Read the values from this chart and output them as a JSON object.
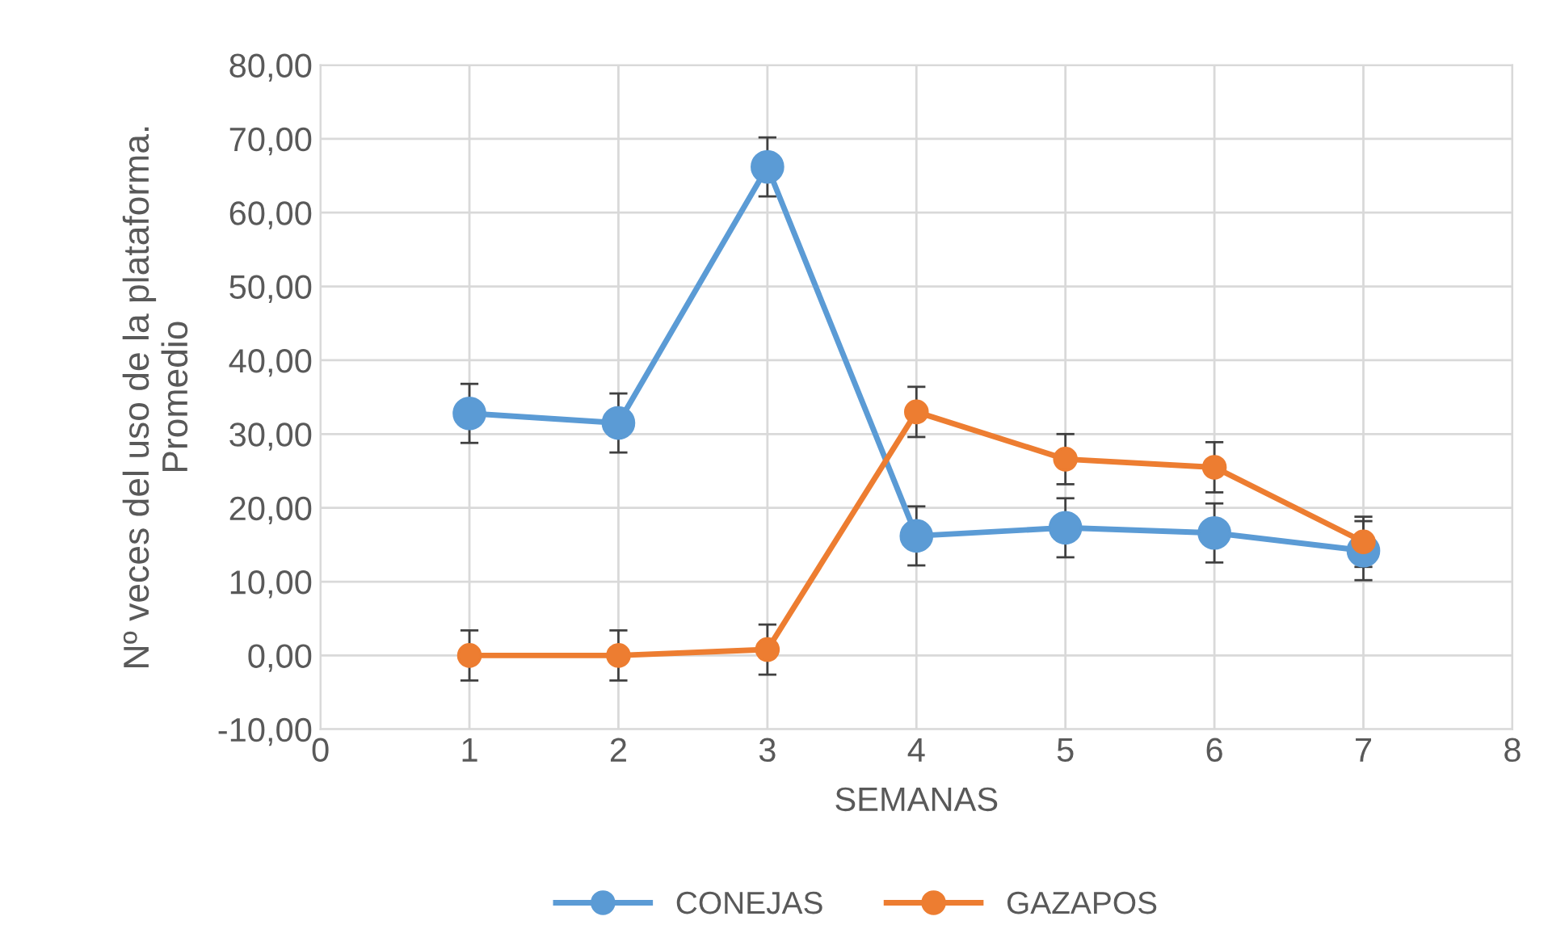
{
  "chart_data": {
    "type": "line",
    "xlabel": "SEMANAS",
    "ylabel": "Nº veces del uso de la plataforma.\nPromedio",
    "x": [
      1,
      2,
      3,
      4,
      5,
      6,
      7
    ],
    "series": [
      {
        "name": "CONEJAS",
        "color": "#5b9bd5",
        "values": [
          32.8,
          31.5,
          66.2,
          16.2,
          17.3,
          16.6,
          14.2
        ],
        "errors": [
          4,
          4,
          4,
          4,
          4,
          4,
          4
        ]
      },
      {
        "name": "GAZAPOS",
        "color": "#ed7d31",
        "values": [
          0,
          0,
          0.8,
          33.0,
          26.6,
          25.5,
          15.4
        ],
        "errors": [
          3.4,
          3.4,
          3.4,
          3.4,
          3.4,
          3.4,
          3.4
        ]
      }
    ],
    "xlim": [
      0,
      8
    ],
    "xticks": [
      0,
      1,
      2,
      3,
      4,
      5,
      6,
      7,
      8
    ],
    "ylim": [
      -10,
      80
    ],
    "yticks": [
      {
        "value": -10,
        "label": "-10,00"
      },
      {
        "value": 0,
        "label": "0,00"
      },
      {
        "value": 10,
        "label": "10,00"
      },
      {
        "value": 20,
        "label": "20,00"
      },
      {
        "value": 30,
        "label": "30,00"
      },
      {
        "value": 40,
        "label": "40,00"
      },
      {
        "value": 50,
        "label": "50,00"
      },
      {
        "value": 60,
        "label": "60,00"
      },
      {
        "value": 70,
        "label": "70,00"
      },
      {
        "value": 80,
        "label": "80,00"
      }
    ],
    "grid": true,
    "legend": "bottom",
    "marker": "circle",
    "line_style": "solid"
  }
}
